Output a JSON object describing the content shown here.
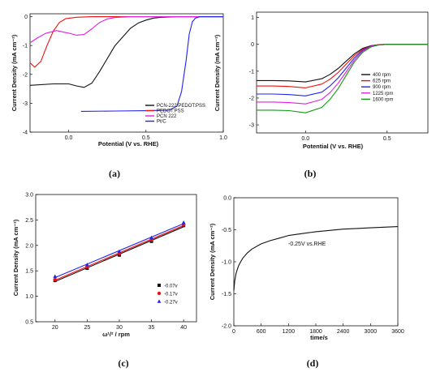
{
  "chart_data": [
    {
      "type": "line",
      "caption": "(a)",
      "xlabel": "Potential (V vs. RHE)",
      "ylabel": "Current Density (mA cm⁻²)",
      "xlim": [
        -0.25,
        1.0
      ],
      "ylim": [
        -4,
        0.1
      ],
      "xticks": [
        "0.0",
        "0.5",
        "1.0"
      ],
      "yticks": [
        "0",
        "-1",
        "-2",
        "-3",
        "-4"
      ],
      "legend": "bottom-right",
      "series": [
        {
          "name": "PCN-222/PEDOT:PSS",
          "color": "#111111",
          "x": [
            -0.25,
            -0.1,
            0.0,
            0.05,
            0.1,
            0.15,
            0.2,
            0.3,
            0.4,
            0.45,
            0.5,
            0.55,
            0.6,
            0.65,
            0.7,
            0.8,
            0.9,
            1.0
          ],
          "y": [
            -2.38,
            -2.33,
            -2.33,
            -2.4,
            -2.45,
            -2.3,
            -1.9,
            -1.0,
            -0.4,
            -0.22,
            -0.12,
            -0.05,
            -0.02,
            -0.01,
            0.0,
            0.0,
            0.0,
            0.0
          ]
        },
        {
          "name": "PEDOT:PSS",
          "color": "#ee1111",
          "x": [
            -0.25,
            -0.22,
            -0.18,
            -0.14,
            -0.1,
            -0.06,
            -0.02,
            0.05,
            0.15,
            0.3,
            0.5,
            0.7,
            1.0
          ],
          "y": [
            -1.6,
            -1.75,
            -1.55,
            -1.0,
            -0.5,
            -0.2,
            -0.07,
            -0.02,
            0.0,
            0.0,
            0.0,
            0.0,
            0.0
          ]
        },
        {
          "name": "PCN 222",
          "color": "#e020e0",
          "x": [
            -0.25,
            -0.2,
            -0.15,
            -0.08,
            0.0,
            0.05,
            0.1,
            0.15,
            0.2,
            0.25,
            0.3,
            0.4,
            0.5,
            0.7,
            1.0
          ],
          "y": [
            -0.9,
            -0.73,
            -0.58,
            -0.48,
            -0.57,
            -0.64,
            -0.62,
            -0.42,
            -0.2,
            -0.08,
            -0.03,
            0.0,
            0.0,
            0.0,
            0.0
          ]
        },
        {
          "name": "Pt/C",
          "color": "#2222ee",
          "x": [
            0.08,
            0.3,
            0.5,
            0.65,
            0.7,
            0.73,
            0.76,
            0.78,
            0.8,
            0.82,
            0.85,
            0.9,
            1.0
          ],
          "y": [
            -3.28,
            -3.27,
            -3.26,
            -3.24,
            -3.1,
            -2.6,
            -1.5,
            -0.6,
            -0.18,
            -0.05,
            0.0,
            0.0,
            0.0
          ]
        }
      ]
    },
    {
      "type": "line",
      "caption": "(b)",
      "xlabel": "Potential (V vs. RHE)",
      "ylabel": "Current Density (mA cm⁻²)",
      "xlim": [
        -0.3,
        0.75
      ],
      "ylim": [
        -3.3,
        1.2
      ],
      "xticks": [
        "0.0",
        "0.5"
      ],
      "yticks": [
        "1",
        "0",
        "-1",
        "-2",
        "-3"
      ],
      "legend": "bottom-right",
      "series": [
        {
          "name": "400 rpm",
          "color": "#111111",
          "x": [
            -0.3,
            -0.2,
            -0.1,
            0.0,
            0.1,
            0.15,
            0.2,
            0.25,
            0.3,
            0.35,
            0.4,
            0.45,
            0.5,
            0.55,
            0.6,
            0.75
          ],
          "y": [
            -1.35,
            -1.35,
            -1.36,
            -1.4,
            -1.28,
            -1.12,
            -0.9,
            -0.62,
            -0.35,
            -0.15,
            -0.05,
            -0.01,
            0.0,
            0.0,
            0.0,
            0.0
          ]
        },
        {
          "name": "625 rpm",
          "color": "#ee1111",
          "x": [
            -0.3,
            -0.2,
            -0.1,
            0.0,
            0.1,
            0.15,
            0.2,
            0.25,
            0.3,
            0.35,
            0.4,
            0.45,
            0.5,
            0.55,
            0.6,
            0.75
          ],
          "y": [
            -1.55,
            -1.55,
            -1.57,
            -1.62,
            -1.48,
            -1.3,
            -1.05,
            -0.73,
            -0.42,
            -0.18,
            -0.06,
            -0.01,
            0.0,
            0.0,
            0.0,
            0.0
          ]
        },
        {
          "name": "900 rpm",
          "color": "#2222ee",
          "x": [
            -0.3,
            -0.2,
            -0.1,
            0.0,
            0.1,
            0.15,
            0.2,
            0.25,
            0.3,
            0.35,
            0.4,
            0.45,
            0.5,
            0.55,
            0.6,
            0.75
          ],
          "y": [
            -1.85,
            -1.85,
            -1.87,
            -1.92,
            -1.78,
            -1.55,
            -1.25,
            -0.88,
            -0.5,
            -0.22,
            -0.07,
            -0.02,
            0.0,
            0.0,
            0.0,
            0.0
          ]
        },
        {
          "name": "1225 rpm",
          "color": "#e020e0",
          "x": [
            -0.3,
            -0.2,
            -0.1,
            0.0,
            0.1,
            0.15,
            0.2,
            0.25,
            0.3,
            0.35,
            0.4,
            0.45,
            0.5,
            0.55,
            0.6,
            0.75
          ],
          "y": [
            -2.15,
            -2.15,
            -2.17,
            -2.22,
            -2.05,
            -1.8,
            -1.45,
            -1.02,
            -0.58,
            -0.26,
            -0.08,
            -0.02,
            0.0,
            0.0,
            0.0,
            0.0
          ]
        },
        {
          "name": "1600 rpm",
          "color": "#119911",
          "x": [
            -0.3,
            -0.2,
            -0.1,
            0.0,
            0.1,
            0.15,
            0.2,
            0.25,
            0.3,
            0.35,
            0.4,
            0.45,
            0.5,
            0.55,
            0.6,
            0.75
          ],
          "y": [
            -2.45,
            -2.45,
            -2.47,
            -2.55,
            -2.35,
            -2.05,
            -1.65,
            -1.15,
            -0.65,
            -0.3,
            -0.1,
            -0.02,
            0.0,
            0.0,
            0.0,
            0.0
          ]
        }
      ]
    },
    {
      "type": "scatter",
      "caption": "(c)",
      "xlabel": "ω¹/² / rpm",
      "ylabel": "Current Density (mA cm⁻²)",
      "xlim": [
        17,
        42
      ],
      "ylim": [
        0.5,
        3.0
      ],
      "xticks": [
        "20",
        "25",
        "30",
        "35",
        "40"
      ],
      "yticks": [
        "3.0",
        "2.5",
        "2.0",
        "1.5",
        "1.0",
        "0.5"
      ],
      "legend": "bottom-right",
      "x": [
        20,
        25,
        30,
        35,
        40
      ],
      "series": [
        {
          "name": "-0.07v",
          "color": "#111111",
          "marker": "square",
          "values": [
            1.31,
            1.55,
            1.81,
            2.08,
            2.39
          ]
        },
        {
          "name": "-0.17v",
          "color": "#ee1111",
          "marker": "circle",
          "values": [
            1.33,
            1.58,
            1.84,
            2.11,
            2.41
          ]
        },
        {
          "name": "-0.27v",
          "color": "#2222ee",
          "marker": "triangle",
          "values": [
            1.39,
            1.62,
            1.88,
            2.15,
            2.45
          ]
        }
      ]
    },
    {
      "type": "line",
      "caption": "(d)",
      "xlabel": "time/s",
      "ylabel": "Current Density (mA cm⁻²)",
      "annotation": "-0.25V vs.RHE",
      "xlim": [
        0,
        3600
      ],
      "ylim": [
        -2.0,
        0.0
      ],
      "xticks": [
        "0",
        "600",
        "1200",
        "1800",
        "2400",
        "3000",
        "3600"
      ],
      "yticks": [
        "0.0",
        "-0.5",
        "-1.0",
        "-1.5",
        "-2.0"
      ],
      "series": [
        {
          "name": "",
          "color": "#111111",
          "x": [
            0,
            20,
            50,
            100,
            150,
            200,
            300,
            400,
            600,
            800,
            1000,
            1200,
            1500,
            1800,
            2100,
            2400,
            2700,
            3000,
            3300,
            3600
          ],
          "y": [
            -1.45,
            -1.3,
            -1.18,
            -1.07,
            -1.0,
            -0.94,
            -0.86,
            -0.8,
            -0.72,
            -0.67,
            -0.63,
            -0.59,
            -0.56,
            -0.53,
            -0.51,
            -0.49,
            -0.48,
            -0.47,
            -0.46,
            -0.45
          ]
        }
      ]
    }
  ]
}
